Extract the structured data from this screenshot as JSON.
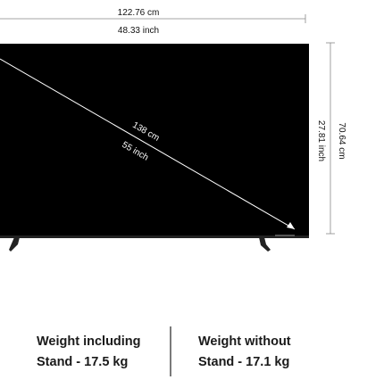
{
  "dimensions": {
    "width_cm": "122.76 cm",
    "width_inch": "48.33 inch",
    "diagonal_cm": "138 cm",
    "diagonal_inch": "55 inch",
    "height_cm": "70.64 cm",
    "height_inch": "27.81 inch"
  },
  "weights": [
    {
      "line1": "Weight including",
      "line2": "Stand - 17.5 kg"
    },
    {
      "line1": "Weight without",
      "line2": "Stand - 17.1 kg"
    }
  ]
}
